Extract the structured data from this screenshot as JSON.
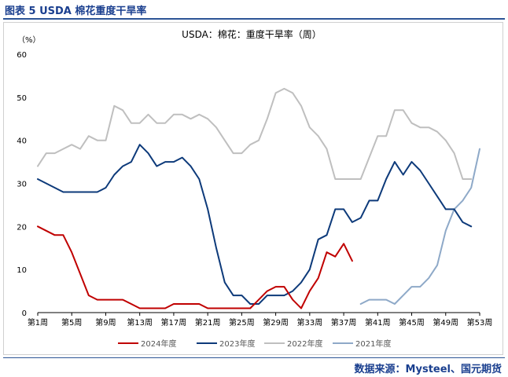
{
  "header": {
    "figure_title": "图表 5 USDA 棉花重度干旱率"
  },
  "footer": {
    "source": "数据来源：Mysteel、国元期货"
  },
  "chart_data": {
    "type": "line",
    "title": "USDA：棉花：重度干旱率（周）",
    "ylabel": "（%）",
    "ylim": [
      0,
      60
    ],
    "yticks": [
      0,
      10,
      20,
      30,
      40,
      50,
      60
    ],
    "xlim": [
      1,
      53
    ],
    "xticks": [
      1,
      5,
      9,
      13,
      17,
      21,
      25,
      29,
      33,
      37,
      41,
      45,
      49,
      53
    ],
    "xtick_labels": [
      "第1周",
      "第5周",
      "第9周",
      "第13周",
      "第17周",
      "第21周",
      "第25周",
      "第29周",
      "第33周",
      "第37周",
      "第41周",
      "第45周",
      "第49周",
      "第53周"
    ],
    "grid": false,
    "legend_position": "bottom",
    "series": [
      {
        "name": "2024年度",
        "color": "#c00000",
        "x": [
          1,
          2,
          3,
          4,
          5,
          6,
          7,
          8,
          9,
          10,
          11,
          12,
          13,
          14,
          15,
          16,
          17,
          18,
          19,
          20,
          21,
          22,
          23,
          24,
          25,
          26,
          27,
          28,
          29,
          30,
          31,
          32,
          33,
          34,
          35,
          36,
          37,
          38
        ],
        "y": [
          20,
          19,
          18,
          18,
          14,
          9,
          4,
          3,
          3,
          3,
          3,
          2,
          1,
          1,
          1,
          1,
          2,
          2,
          2,
          2,
          1,
          1,
          1,
          1,
          1,
          1,
          3,
          5,
          6,
          6,
          3,
          1,
          5,
          8,
          14,
          13,
          16,
          12
        ]
      },
      {
        "name": "2023年度",
        "color": "#0d3a7a",
        "x": [
          1,
          2,
          3,
          4,
          5,
          6,
          7,
          8,
          9,
          10,
          11,
          12,
          13,
          14,
          15,
          16,
          17,
          18,
          19,
          20,
          21,
          22,
          23,
          24,
          25,
          26,
          27,
          28,
          29,
          30,
          31,
          32,
          33,
          34,
          35,
          36,
          37,
          38,
          39,
          40,
          41,
          42,
          43,
          44,
          45,
          46,
          47,
          48,
          49,
          50,
          51,
          52
        ],
        "y": [
          31,
          30,
          29,
          28,
          28,
          28,
          28,
          28,
          29,
          32,
          34,
          35,
          39,
          37,
          34,
          35,
          35,
          36,
          34,
          31,
          24,
          15,
          7,
          4,
          4,
          2,
          2,
          4,
          4,
          4,
          5,
          7,
          10,
          17,
          18,
          24,
          24,
          21,
          22,
          26,
          26,
          31,
          35,
          32,
          35,
          33,
          30,
          27,
          24,
          24,
          21,
          20
        ]
      },
      {
        "name": "2022年度",
        "color": "#bfbfbf",
        "x": [
          1,
          2,
          3,
          4,
          5,
          6,
          7,
          8,
          9,
          10,
          11,
          12,
          13,
          14,
          15,
          16,
          17,
          18,
          19,
          20,
          21,
          22,
          23,
          24,
          25,
          26,
          27,
          28,
          29,
          30,
          31,
          32,
          33,
          34,
          35,
          36,
          37,
          38,
          39,
          40,
          41,
          42,
          43,
          44,
          45,
          46,
          47,
          48,
          49,
          50,
          51,
          52
        ],
        "y": [
          34,
          37,
          37,
          38,
          39,
          38,
          41,
          40,
          40,
          48,
          47,
          44,
          44,
          46,
          44,
          44,
          46,
          46,
          45,
          46,
          45,
          43,
          40,
          37,
          37,
          39,
          40,
          45,
          51,
          52,
          51,
          48,
          43,
          41,
          38,
          31,
          31,
          31,
          31,
          36,
          41,
          41,
          47,
          47,
          44,
          43,
          43,
          42,
          40,
          37,
          31,
          31
        ]
      },
      {
        "name": "2021年度",
        "color": "#8ea9c8",
        "x": [
          39,
          40,
          41,
          42,
          43,
          44,
          45,
          46,
          47,
          48,
          49,
          50,
          51,
          52,
          53
        ],
        "y": [
          2,
          3,
          3,
          3,
          2,
          4,
          6,
          6,
          8,
          11,
          19,
          24,
          26,
          29,
          38
        ]
      }
    ]
  }
}
